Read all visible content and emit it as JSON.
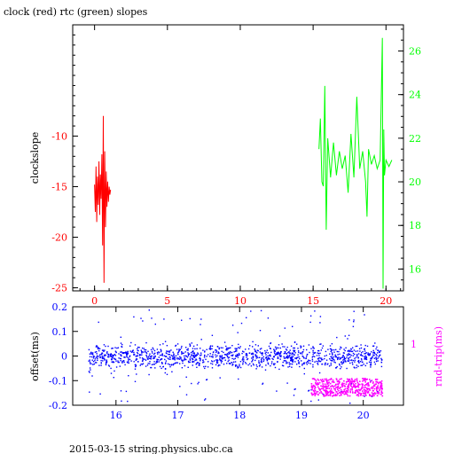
{
  "title": "clock (red) rtc (green) slopes",
  "footer": "2015-03-15 string.physics.ubc.ca",
  "colors": {
    "clock": "#ff0000",
    "rtc": "#00ff00",
    "offset": "#0000ff",
    "rndtrip": "#ff00ff",
    "axis": "#000000"
  },
  "chart_data": [
    {
      "type": "line",
      "title": "clock (red) rtc (green) slopes",
      "ylabel": "clockslope",
      "y2label": "",
      "xlim": [
        -1.5,
        21.2
      ],
      "ylim": [
        -25.3,
        1.0
      ],
      "y2lim": [
        15.0,
        27.2
      ],
      "x_ticks": [
        0,
        5,
        10,
        15,
        20
      ],
      "y_ticks": [
        -10,
        -15,
        -20,
        -25
      ],
      "y2_ticks": [
        16,
        18,
        20,
        22,
        24,
        26
      ],
      "series": [
        {
          "axis": "left",
          "x": [
            0.0,
            0.05,
            0.1,
            0.15,
            0.2,
            0.25,
            0.3,
            0.35,
            0.4,
            0.45,
            0.5,
            0.55,
            0.6,
            0.65,
            0.7,
            0.75,
            0.8,
            0.85,
            0.9,
            0.95,
            1.0,
            1.05,
            1.1
          ],
          "values": [
            -14.8,
            -17.5,
            -13.0,
            -18.5,
            -14.0,
            -16.8,
            -12.5,
            -17.8,
            -13.8,
            -16.2,
            -11.8,
            -20.8,
            -8.0,
            -24.5,
            -11.5,
            -19.0,
            -13.5,
            -17.0,
            -14.5,
            -16.5,
            -15.0,
            -15.8,
            -15.3
          ]
        },
        {
          "axis": "right",
          "x": [
            15.4,
            15.5,
            15.6,
            15.7,
            15.8,
            15.9,
            16.0,
            16.2,
            16.4,
            16.6,
            16.8,
            17.0,
            17.2,
            17.4,
            17.6,
            17.8,
            18.0,
            18.2,
            18.4,
            18.6,
            18.7,
            18.8,
            19.0,
            19.2,
            19.4,
            19.6,
            19.75,
            19.8,
            19.85,
            19.9,
            20.0,
            20.2,
            20.4
          ],
          "values": [
            21.5,
            22.9,
            20.0,
            19.8,
            24.4,
            17.8,
            22.0,
            20.2,
            21.8,
            20.3,
            21.4,
            20.6,
            21.2,
            19.5,
            22.2,
            20.2,
            23.9,
            20.6,
            21.4,
            20.0,
            18.4,
            21.5,
            20.8,
            21.2,
            20.6,
            21.0,
            26.6,
            15.1,
            22.4,
            20.3,
            21.0,
            20.7,
            21.0
          ]
        }
      ]
    },
    {
      "type": "scatter",
      "ylabel": "offset(ms)",
      "y2label": "rnd-trip(ms)",
      "xlim": [
        15.3,
        20.65
      ],
      "ylim": [
        -0.2,
        0.2
      ],
      "x_ticks": [
        16,
        17,
        18,
        19,
        20
      ],
      "y_ticks": [
        "0.2",
        "0.1",
        "0",
        "-0.1",
        "-0.2"
      ],
      "y2_ticks": [
        "1"
      ],
      "series": [
        {
          "axis": "left",
          "x_range": [
            15.55,
            20.3
          ],
          "center": 0.0,
          "spread": 0.045
        },
        {
          "axis": "right",
          "x_range": [
            19.15,
            20.3
          ],
          "center": 0.92,
          "spread": 0.015
        }
      ]
    }
  ]
}
